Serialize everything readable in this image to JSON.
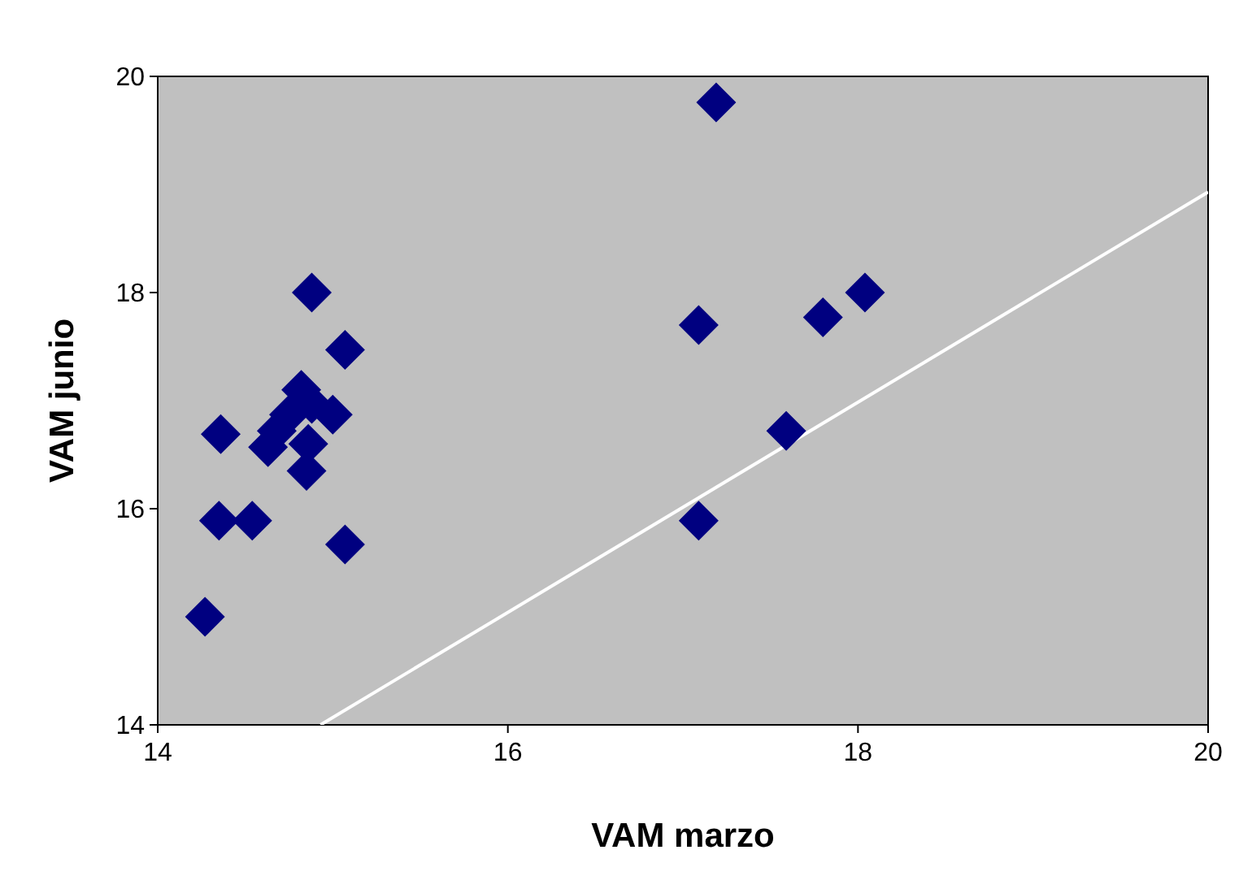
{
  "chart_data": {
    "type": "scatter",
    "xlabel": "VAM marzo",
    "ylabel": "VAM junio",
    "xlim": [
      14,
      20
    ],
    "ylim": [
      14,
      20
    ],
    "xticks": [
      14,
      16,
      18,
      20
    ],
    "yticks": [
      14,
      16,
      18,
      20
    ],
    "grid": false,
    "series": [
      {
        "marker": "diamond",
        "color": "#000080",
        "x": [
          14.27,
          14.36,
          14.35,
          14.54,
          14.63,
          14.68,
          14.75,
          14.82,
          14.88,
          14.85,
          14.86,
          14.88,
          15.0,
          15.07,
          15.07,
          17.19,
          17.09,
          17.09,
          17.59,
          17.8,
          18.04
        ],
        "values": [
          15.0,
          16.69,
          15.89,
          15.89,
          16.57,
          16.72,
          16.87,
          17.1,
          18.0,
          16.35,
          16.6,
          16.97,
          16.87,
          17.47,
          15.67,
          19.76,
          17.7,
          15.89,
          16.72,
          17.77,
          18.0
        ]
      },
      {
        "type": "line",
        "color": "#ffffff",
        "x": [
          14.93,
          20
        ],
        "values": [
          14,
          18.93
        ]
      }
    ]
  }
}
